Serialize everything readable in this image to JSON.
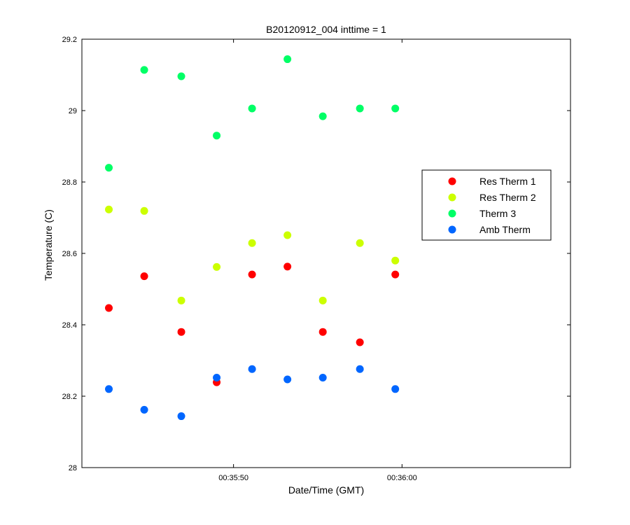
{
  "chart_data": {
    "type": "scatter",
    "title": "B20120912_004 inttime = 1",
    "xlabel": "Date/Time (GMT)",
    "ylabel": "Temperature (C)",
    "x_unit": "time of day (hh:mm:ss)",
    "xlim": [
      "00:35:41",
      "00:36:10"
    ],
    "ylim": [
      28,
      29.2
    ],
    "x_ticks": [
      {
        "value": "00:35:50",
        "label": "00:35:50"
      },
      {
        "value": "00:36:00",
        "label": "00:36:00"
      }
    ],
    "y_ticks": [
      {
        "value": 28,
        "label": "28"
      },
      {
        "value": 28.2,
        "label": "28.2"
      },
      {
        "value": 28.4,
        "label": "28.4"
      },
      {
        "value": 28.6,
        "label": "28.6"
      },
      {
        "value": 28.8,
        "label": "28.8"
      },
      {
        "value": 29,
        "label": "29"
      },
      {
        "value": 29.2,
        "label": "29.2"
      }
    ],
    "grid": false,
    "legend_position": "right",
    "x": [
      "00:35:42.6",
      "00:35:44.7",
      "00:35:46.9",
      "00:35:49.0",
      "00:35:51.1",
      "00:35:53.2",
      "00:35:55.3",
      "00:35:57.5",
      "00:35:59.6"
    ],
    "series": [
      {
        "name": "Res Therm 1",
        "color": "#ff0000",
        "values": [
          28.447,
          28.536,
          28.38,
          28.239,
          28.541,
          28.563,
          28.38,
          28.351,
          28.541
        ]
      },
      {
        "name": "Res Therm 2",
        "color": "#ccff00",
        "values": [
          28.723,
          28.719,
          28.468,
          28.562,
          28.629,
          28.651,
          28.468,
          28.629,
          28.58
        ]
      },
      {
        "name": "Therm 3",
        "color": "#00ff66",
        "values": [
          28.84,
          29.114,
          29.096,
          28.93,
          29.006,
          29.144,
          28.984,
          29.006,
          29.006
        ]
      },
      {
        "name": "Amb Therm",
        "color": "#0066ff",
        "values": [
          28.22,
          28.162,
          28.144,
          28.252,
          28.276,
          28.247,
          28.252,
          28.276,
          28.22
        ]
      }
    ]
  }
}
